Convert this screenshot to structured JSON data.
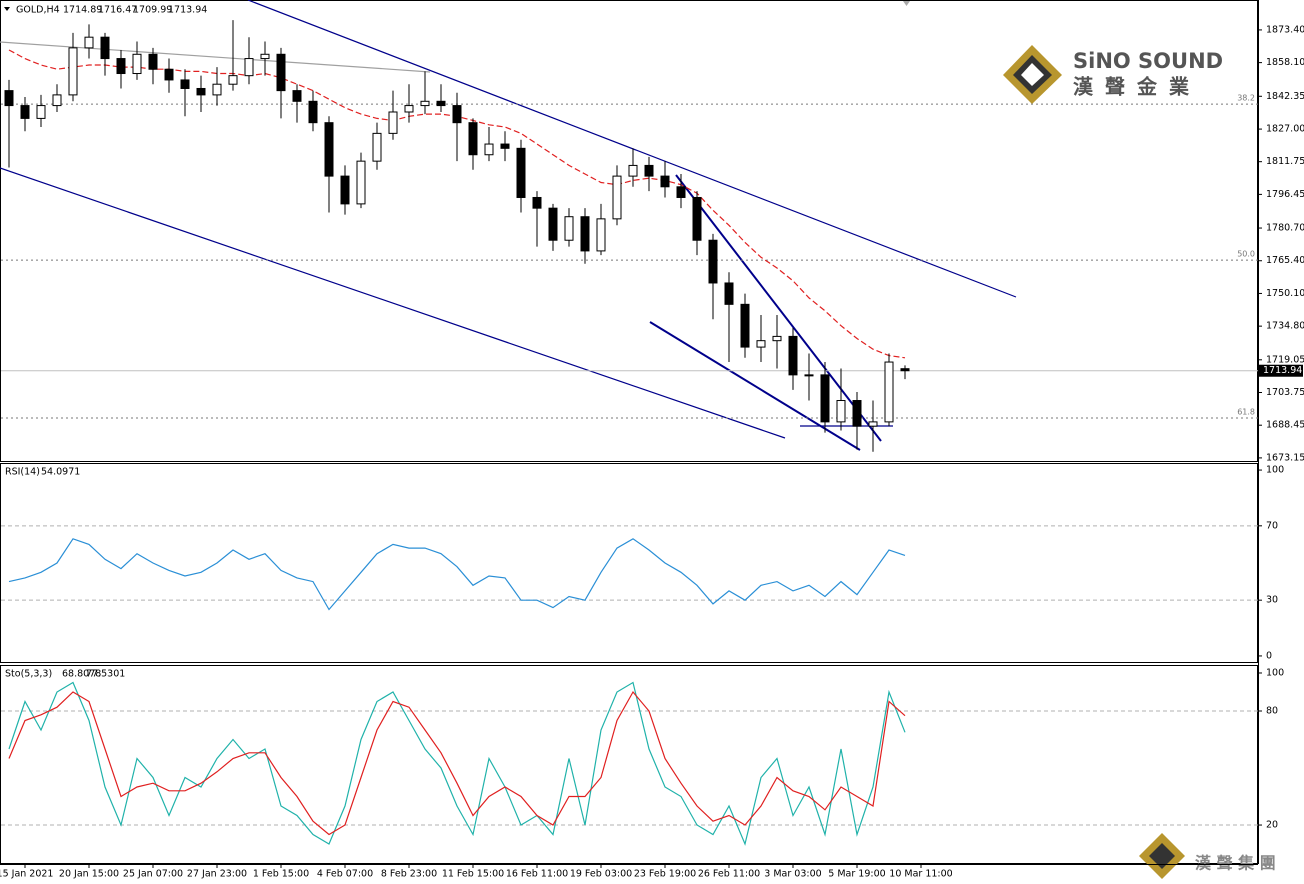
{
  "chart_data": [
    {
      "type": "candlestick",
      "title": "GOLD,H4",
      "categories": [
        null,
        "15 Jan 2021",
        null,
        null,
        null,
        "20 Jan 15:00",
        null,
        null,
        null,
        "25 Jan 07:00",
        null,
        null,
        null,
        "27 Jan 23:00",
        null,
        null,
        null,
        "1 Feb 15:00",
        null,
        null,
        null,
        "4 Feb 07:00",
        null,
        null,
        null,
        "8 Feb 23:00",
        null,
        null,
        null,
        "11 Feb 15:00",
        null,
        null,
        null,
        "16 Feb 11:00",
        null,
        null,
        null,
        "19 Feb 03:00",
        null,
        null,
        null,
        "23 Feb 19:00",
        null,
        null,
        null,
        "26 Feb 11:00",
        null,
        null,
        null,
        "3 Mar 03:00",
        null,
        null,
        null,
        "5 Mar 19:00",
        null,
        null,
        null,
        "10 Mar 11:00"
      ],
      "open": [
        1845,
        1838,
        1832,
        1838,
        1843,
        1865,
        1870,
        1860,
        1853,
        1862,
        1855,
        1850,
        1846,
        1843,
        1848,
        1852,
        1860,
        1862,
        1845,
        1840,
        1830,
        1805,
        1792,
        1812,
        1825,
        1835,
        1838,
        1840,
        1838,
        1830,
        1815,
        1820,
        1818,
        1795,
        1790,
        1775,
        1786,
        1770,
        1785,
        1805,
        1810,
        1805,
        1800,
        1795,
        1775,
        1755,
        1745,
        1725,
        1728,
        1730,
        1712,
        1712,
        1690,
        1700,
        1688,
        1690,
        1714.89,
        null
      ],
      "high": [
        1850,
        1842,
        1843,
        1848,
        1872,
        1876,
        1872,
        1864,
        1868,
        1865,
        1860,
        1855,
        1852,
        1856,
        1878,
        1870,
        1868,
        1865,
        1848,
        1845,
        1833,
        1810,
        1816,
        1830,
        1845,
        1848,
        1854,
        1848,
        1844,
        1832,
        1828,
        1826,
        1822,
        1798,
        1792,
        1790,
        1790,
        1792,
        1810,
        1818,
        1814,
        1812,
        1806,
        1798,
        1778,
        1760,
        1750,
        1740,
        1740,
        1734,
        1722,
        1718,
        1715,
        1704,
        1700,
        1722,
        1716.47,
        null
      ],
      "low": [
        1809,
        1826,
        1828,
        1835,
        1840,
        1860,
        1852,
        1846,
        1850,
        1848,
        1844,
        1833,
        1835,
        1838,
        1845,
        1848,
        1852,
        1832,
        1830,
        1826,
        1788,
        1787,
        1790,
        1808,
        1822,
        1830,
        1834,
        1835,
        1812,
        1808,
        1812,
        1812,
        1788,
        1772,
        1770,
        1772,
        1764,
        1768,
        1782,
        1800,
        1798,
        1795,
        1790,
        1768,
        1738,
        1718,
        1720,
        1718,
        1715,
        1705,
        1700,
        1685,
        1686,
        1677,
        1676,
        1688,
        1709.99,
        null
      ],
      "close": [
        1838,
        1832,
        1838,
        1843,
        1865,
        1870,
        1860,
        1853,
        1862,
        1855,
        1850,
        1846,
        1843,
        1848,
        1852,
        1860,
        1862,
        1845,
        1840,
        1830,
        1805,
        1792,
        1812,
        1825,
        1835,
        1838,
        1840,
        1838,
        1830,
        1815,
        1820,
        1818,
        1795,
        1790,
        1775,
        1786,
        1770,
        1785,
        1805,
        1810,
        1805,
        1800,
        1795,
        1775,
        1755,
        1745,
        1725,
        1728,
        1730,
        1712,
        1712,
        1690,
        1700,
        1688,
        1690,
        1718,
        1713.94,
        null
      ],
      "ma_values": [
        1864,
        1860,
        1857,
        1855,
        1856,
        1857,
        1857,
        1856,
        1856,
        1855,
        1855,
        1854,
        1854,
        1853,
        1853,
        1852,
        1853,
        1851,
        1848,
        1845,
        1841,
        1837,
        1834,
        1832,
        1831,
        1833,
        1834,
        1834,
        1833,
        1831,
        1829,
        1828,
        1825,
        1820,
        1815,
        1810,
        1806,
        1802,
        1801,
        1803,
        1804,
        1803,
        1801,
        1797,
        1789,
        1782,
        1774,
        1767,
        1762,
        1756,
        1748,
        1742,
        1735,
        1729,
        1724,
        1721,
        1720,
        null
      ],
      "ma_color": "#e02020",
      "up_color": "#ffffff",
      "down_color": "#000000",
      "ylim": [
        1671.7,
        1887.4
      ],
      "yticks": [
        {
          "value": 1873.4,
          "label": "1873.40"
        },
        {
          "value": 1858.1,
          "label": "1858.10"
        },
        {
          "value": 1842.35,
          "label": "1842.35"
        },
        {
          "value": 1827,
          "label": "1827.00"
        },
        {
          "value": 1811.75,
          "label": "1811.75"
        },
        {
          "value": 1796.45,
          "label": "1796.45"
        },
        {
          "value": 1780.7,
          "label": "1780.70"
        },
        {
          "value": 1765.4,
          "label": "1765.40"
        },
        {
          "value": 1750.1,
          "label": "1750.10"
        },
        {
          "value": 1734.8,
          "label": "1734.80"
        },
        {
          "value": 1719.05,
          "label": "1719.05"
        },
        {
          "value": 1703.75,
          "label": "1703.75"
        },
        {
          "value": 1688.45,
          "label": "1688.45"
        },
        {
          "value": 1673.15,
          "label": "1673.15"
        }
      ],
      "fib_levels": [
        {
          "label": "38.2",
          "value": 1838.7
        },
        {
          "label": "50.0",
          "value": 1765.7
        },
        {
          "label": "61.8",
          "value": 1691.8
        }
      ]
    },
    {
      "type": "line",
      "title": "RSI(14)",
      "values": [
        40,
        42,
        45,
        50,
        63,
        60,
        52,
        47,
        55,
        50,
        46,
        43,
        45,
        50,
        57,
        52,
        55,
        46,
        42,
        40,
        25,
        35,
        45,
        55,
        60,
        58,
        58,
        55,
        48,
        38,
        43,
        42,
        30,
        30,
        26,
        32,
        30,
        45,
        58,
        63,
        57,
        50,
        45,
        38,
        28,
        35,
        30,
        38,
        40,
        35,
        38,
        32,
        40,
        33,
        45,
        57,
        54.0971,
        null
      ],
      "color": "#2a8fd6",
      "ylim": [
        -3.8,
        103.8
      ],
      "yticks": [
        0,
        30,
        70,
        100
      ],
      "levels": [
        30,
        70
      ]
    },
    {
      "type": "stochastic",
      "title": "Sto(5,3,3)",
      "series": [
        {
          "color": "#20b2aa",
          "values": [
            60,
            85,
            70,
            90,
            95,
            75,
            40,
            20,
            55,
            45,
            25,
            45,
            40,
            55,
            65,
            55,
            60,
            30,
            25,
            15,
            10,
            30,
            65,
            85,
            90,
            75,
            60,
            50,
            30,
            15,
            55,
            40,
            20,
            25,
            15,
            55,
            20,
            70,
            90,
            95,
            60,
            40,
            35,
            20,
            15,
            30,
            10,
            45,
            55,
            25,
            40,
            15,
            60,
            15,
            40,
            90,
            68.8078,
            null
          ]
        },
        {
          "color": "#e02020",
          "values": [
            55,
            75,
            78,
            82,
            90,
            85,
            60,
            35,
            40,
            42,
            38,
            38,
            42,
            48,
            55,
            58,
            58,
            45,
            35,
            22,
            15,
            20,
            45,
            70,
            85,
            82,
            70,
            58,
            42,
            25,
            35,
            40,
            35,
            25,
            20,
            35,
            35,
            45,
            75,
            90,
            80,
            55,
            42,
            30,
            22,
            25,
            20,
            30,
            45,
            38,
            35,
            28,
            40,
            35,
            30,
            85,
            77.5301,
            null
          ]
        }
      ],
      "ylim": [
        -0.5,
        104.2
      ],
      "yticks": [
        20,
        80,
        100
      ],
      "levels": [
        20,
        80
      ]
    }
  ],
  "logo": {
    "brand": "SiNO SOUND",
    "chinese": "漢聲金業"
  },
  "footer_logo": "漢 聲 集 團"
}
